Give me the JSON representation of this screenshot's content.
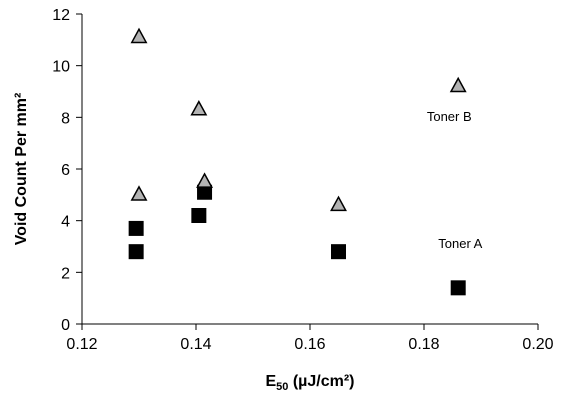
{
  "chart_data": {
    "type": "scatter",
    "title": "",
    "xlabel": "E50 (µJ/cm²)",
    "xlabel_parts": {
      "base": "E",
      "subscript": "50",
      "suffix": " (µJ/cm²)"
    },
    "ylabel": "Void Count Per mm²",
    "xlim": [
      0.12,
      0.2
    ],
    "ylim": [
      0,
      12
    ],
    "x_ticks": [
      "0.12",
      "0.14",
      "0.16",
      "0.18",
      "0.20"
    ],
    "y_ticks": [
      "0",
      "2",
      "4",
      "6",
      "8",
      "10",
      "12"
    ],
    "grid": false,
    "legend": "none",
    "series": [
      {
        "name": "Toner A",
        "marker": "square",
        "color": "#000000",
        "points": [
          {
            "x": 0.1295,
            "y": 2.8
          },
          {
            "x": 0.1295,
            "y": 3.7
          },
          {
            "x": 0.1405,
            "y": 4.2
          },
          {
            "x": 0.1415,
            "y": 5.1
          },
          {
            "x": 0.165,
            "y": 2.8
          },
          {
            "x": 0.186,
            "y": 1.4
          }
        ]
      },
      {
        "name": "Toner B",
        "marker": "triangle",
        "color": "#b3b3b3",
        "edge_color": "#000000",
        "points": [
          {
            "x": 0.13,
            "y": 11.1
          },
          {
            "x": 0.13,
            "y": 5.0
          },
          {
            "x": 0.1405,
            "y": 8.3
          },
          {
            "x": 0.1415,
            "y": 5.5
          },
          {
            "x": 0.165,
            "y": 4.6
          },
          {
            "x": 0.186,
            "y": 9.2
          }
        ]
      }
    ],
    "annotations": [
      {
        "text": "Toner B",
        "series": "Toner B"
      },
      {
        "text": "Toner A",
        "series": "Toner A"
      }
    ]
  }
}
